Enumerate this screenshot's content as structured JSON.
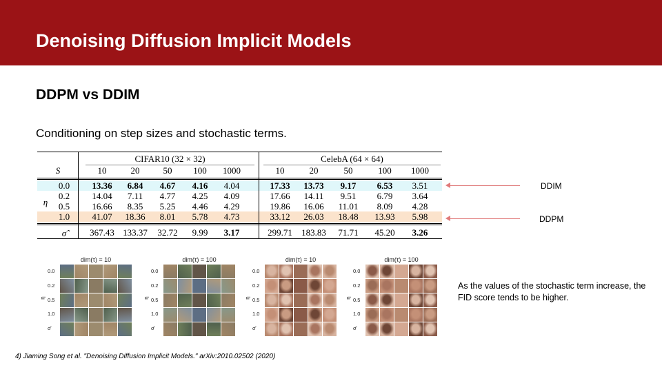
{
  "header": {
    "title": "Denoising Diffusion Implicit Models"
  },
  "subheading": "DDPM vs DDIM",
  "description": "Conditioning on step sizes and stochastic terms.",
  "table": {
    "s_label": "S",
    "eta_label": "η",
    "sigma_label": "σ̂",
    "groups": [
      "CIFAR10 (32 × 32)",
      "CelebA (64 × 64)"
    ],
    "steps": [
      "10",
      "20",
      "50",
      "100",
      "1000",
      "10",
      "20",
      "50",
      "100",
      "1000"
    ],
    "rows": [
      {
        "label": "0.0",
        "values": [
          "13.36",
          "6.84",
          "4.67",
          "4.16",
          "4.04",
          "17.33",
          "13.73",
          "9.17",
          "6.53",
          "3.51"
        ],
        "bold": [
          true,
          true,
          true,
          true,
          false,
          true,
          true,
          true,
          true,
          false
        ]
      },
      {
        "label": "0.2",
        "values": [
          "14.04",
          "7.11",
          "4.77",
          "4.25",
          "4.09",
          "17.66",
          "14.11",
          "9.51",
          "6.79",
          "3.64"
        ],
        "bold": [
          false,
          false,
          false,
          false,
          false,
          false,
          false,
          false,
          false,
          false
        ]
      },
      {
        "label": "0.5",
        "values": [
          "16.66",
          "8.35",
          "5.25",
          "4.46",
          "4.29",
          "19.86",
          "16.06",
          "11.01",
          "8.09",
          "4.28"
        ],
        "bold": [
          false,
          false,
          false,
          false,
          false,
          false,
          false,
          false,
          false,
          false
        ]
      },
      {
        "label": "1.0",
        "values": [
          "41.07",
          "18.36",
          "8.01",
          "5.78",
          "4.73",
          "33.12",
          "26.03",
          "18.48",
          "13.93",
          "5.98"
        ],
        "bold": [
          false,
          false,
          false,
          false,
          false,
          false,
          false,
          false,
          false,
          false
        ]
      }
    ],
    "sigma_row": {
      "values": [
        "367.43",
        "133.37",
        "32.72",
        "9.99",
        "3.17",
        "299.71",
        "183.83",
        "71.71",
        "45.20",
        "3.26"
      ],
      "bold": [
        false,
        false,
        false,
        false,
        true,
        false,
        false,
        false,
        false,
        true
      ]
    },
    "highlight_ddim_color": "#e0f7fa",
    "highlight_ddpm_color": "#fbe3cc"
  },
  "labels": {
    "ddim": "DDIM",
    "ddpm": "DDPM",
    "arrow_color": "#e07a7a"
  },
  "panels": [
    {
      "title": "dim(τ) = 10",
      "dataset": "cifar"
    },
    {
      "title": "dim(τ) = 100",
      "dataset": "cifar"
    },
    {
      "title": "dim(τ) = 10",
      "dataset": "celeba"
    },
    {
      "title": "dim(τ) = 100",
      "dataset": "celeba"
    }
  ],
  "panel_row_labels": [
    "0.0",
    "0.2",
    "0.5",
    "1.0",
    "σ̂"
  ],
  "panel_axis_label": "η",
  "note": "As the values of the stochastic term increase, the FID score tends to be higher.",
  "footnote": "4) Jiaming Song et al. \"Denoising Diffusion Implicit Models.\" arXiv:2010.02502 (2020)",
  "colors": {
    "header_bg": "#9b1316",
    "header_text": "#ffffff"
  }
}
